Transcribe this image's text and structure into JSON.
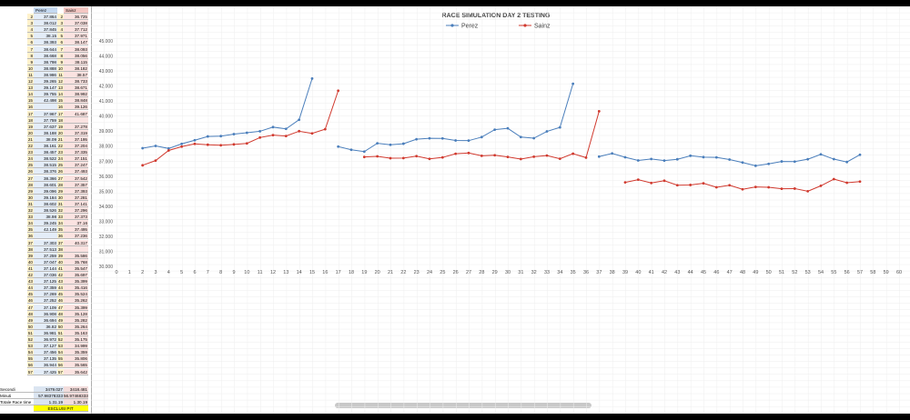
{
  "table": {
    "headers": [
      "Perez",
      "Sainz"
    ],
    "summary": [
      [
        "Secondi",
        "3479.027",
        "3418.481"
      ],
      [
        "Minuti",
        "57.98378333",
        "56.97468333"
      ],
      [
        "Totale Race time",
        "1.31.19",
        "1.30.19"
      ]
    ],
    "note": "ESCLUSI PIT"
  },
  "chart_data": {
    "type": "line",
    "title": "RACE SIMULATION DAY 2 TESTING",
    "x": [
      2,
      3,
      4,
      5,
      6,
      7,
      8,
      9,
      10,
      11,
      12,
      13,
      14,
      15,
      16,
      17,
      18,
      19,
      20,
      21,
      22,
      23,
      24,
      25,
      26,
      27,
      28,
      29,
      30,
      31,
      32,
      33,
      34,
      35,
      36,
      37,
      38,
      39,
      40,
      41,
      42,
      43,
      44,
      45,
      46,
      47,
      48,
      49,
      50,
      51,
      52,
      53,
      54,
      55,
      56,
      57
    ],
    "series": [
      {
        "name": "Perez",
        "color": "#4a7ebb",
        "values": [
          37.864,
          38.012,
          37.845,
          38.15,
          38.393,
          38.644,
          38.668,
          38.798,
          38.888,
          38.986,
          39.265,
          39.147,
          39.755,
          42.498,
          null,
          37.967,
          37.759,
          37.637,
          38.188,
          38.09,
          38.161,
          38.457,
          38.522,
          38.515,
          38.376,
          38.366,
          38.601,
          39.096,
          39.184,
          38.602,
          38.526,
          38.98,
          39.245,
          42.149,
          null,
          37.303,
          37.513,
          37.259,
          37.047,
          37.144,
          37.036,
          37.125,
          37.359,
          37.269,
          37.252,
          37.109,
          36.908,
          36.694,
          36.82,
          36.981,
          36.972,
          37.127,
          37.456,
          37.135,
          36.944,
          37.425
        ]
      },
      {
        "name": "Sainz",
        "color": "#d0392e",
        "values": [
          36.725,
          37.038,
          37.712,
          37.971,
          38.147,
          38.093,
          38.056,
          38.115,
          38.182,
          38.57,
          38.733,
          38.671,
          38.992,
          38.848,
          39.126,
          41.687,
          null,
          37.278,
          37.319,
          37.195,
          37.204,
          37.335,
          37.151,
          37.247,
          37.493,
          37.542,
          37.357,
          37.393,
          37.281,
          37.141,
          37.296,
          37.373,
          37.16,
          37.495,
          37.236,
          40.317,
          null,
          35.586,
          35.768,
          35.547,
          35.697,
          35.399,
          35.416,
          35.524,
          35.262,
          35.399,
          35.128,
          35.282,
          35.264,
          35.163,
          35.175,
          34.999,
          35.359,
          35.806,
          35.565,
          35.642
        ]
      }
    ],
    "xlim": [
      0,
      60
    ],
    "xticks": [
      0,
      1,
      2,
      3,
      4,
      5,
      6,
      7,
      8,
      9,
      10,
      11,
      12,
      13,
      14,
      15,
      16,
      17,
      18,
      19,
      20,
      21,
      22,
      23,
      24,
      25,
      26,
      27,
      28,
      29,
      30,
      31,
      32,
      33,
      34,
      35,
      36,
      37,
      38,
      39,
      40,
      41,
      42,
      43,
      44,
      45,
      46,
      47,
      48,
      49,
      50,
      51,
      52,
      53,
      54,
      55,
      56,
      57,
      58,
      59,
      60
    ],
    "ylim": [
      30,
      45
    ],
    "yticks": [
      {
        "value": 30,
        "label": "30.000"
      },
      {
        "value": 31,
        "label": "31.000"
      },
      {
        "value": 32,
        "label": "32.000"
      },
      {
        "value": 33,
        "label": "33.000"
      },
      {
        "value": 34,
        "label": "34.000"
      },
      {
        "value": 35,
        "label": "35.000"
      },
      {
        "value": 36,
        "label": "36.000"
      },
      {
        "value": 37,
        "label": "37.000"
      },
      {
        "value": 38,
        "label": "38.000"
      },
      {
        "value": 39,
        "label": "39.000"
      },
      {
        "value": 40,
        "label": "40.000"
      },
      {
        "value": 41,
        "label": "41.000"
      },
      {
        "value": 42,
        "label": "42.000"
      },
      {
        "value": 43,
        "label": "43.000"
      },
      {
        "value": 44,
        "label": "44.000"
      },
      {
        "value": 45,
        "label": "45.000"
      }
    ],
    "legend": "top"
  }
}
